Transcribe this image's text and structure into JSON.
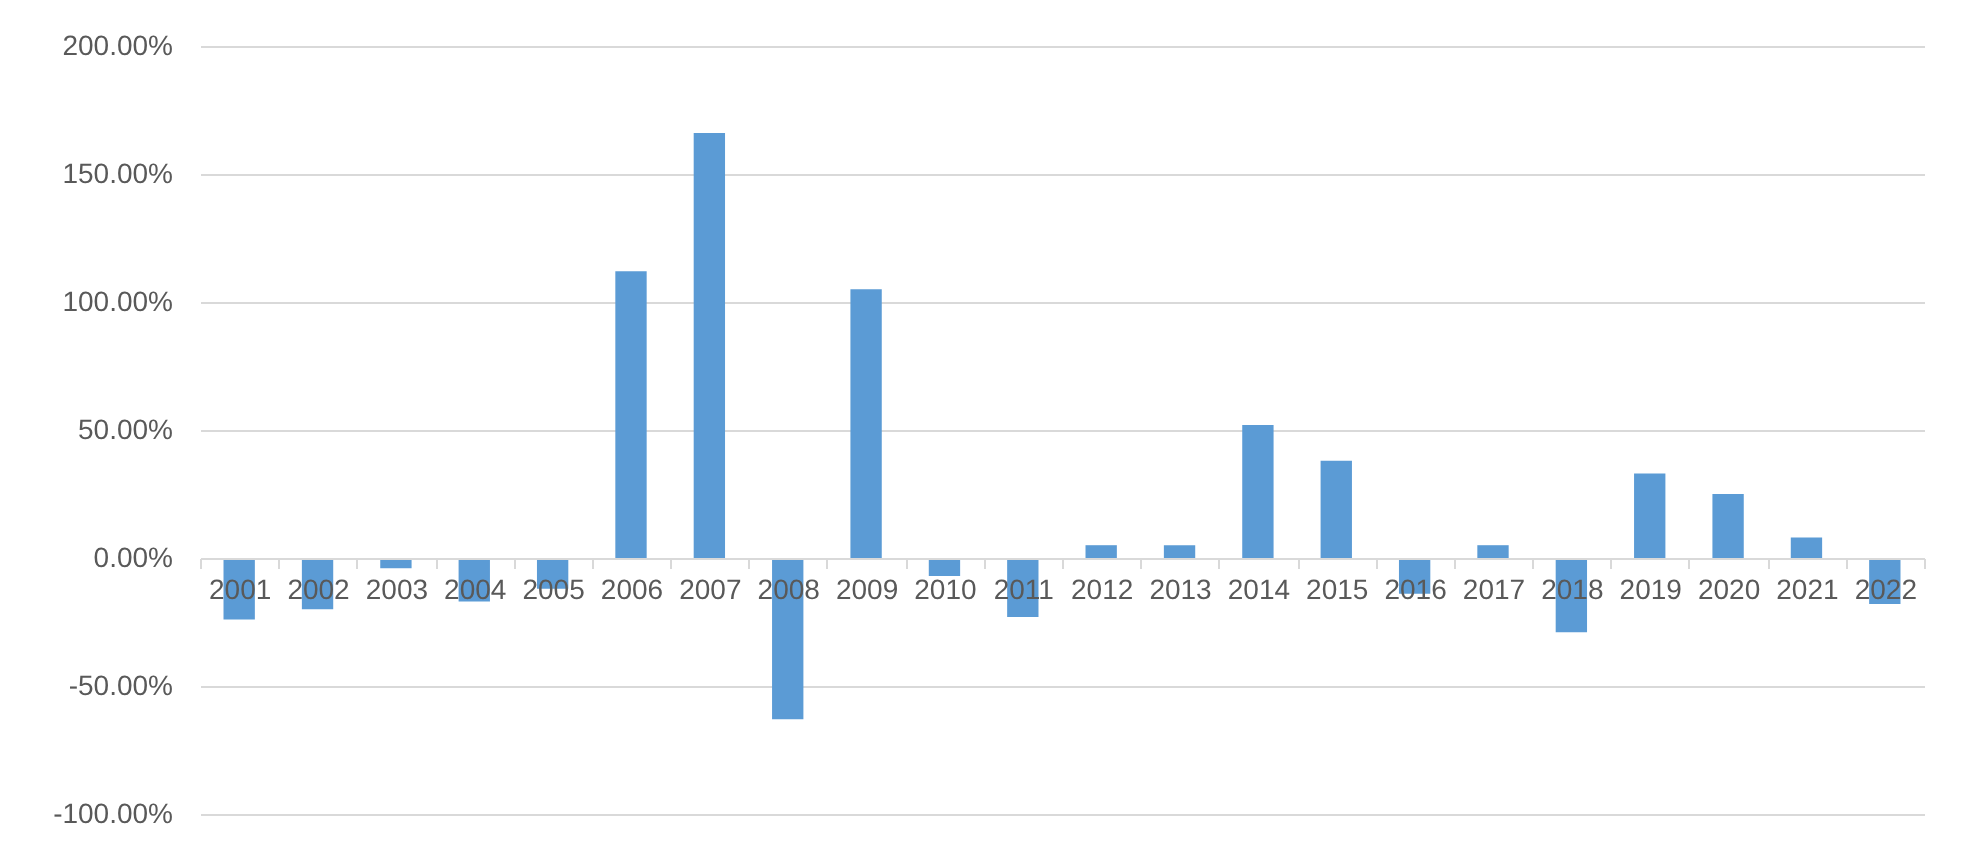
{
  "chart_data": {
    "type": "bar",
    "categories": [
      "2001",
      "2002",
      "2003",
      "2004",
      "2005",
      "2006",
      "2007",
      "2008",
      "2009",
      "2010",
      "2011",
      "2012",
      "2013",
      "2014",
      "2015",
      "2016",
      "2017",
      "2018",
      "2019",
      "2020",
      "2021",
      "2022"
    ],
    "values": [
      -24,
      -20,
      -4,
      -17,
      -12,
      112,
      166,
      -63,
      105,
      -7,
      -23,
      5,
      5,
      52,
      38,
      -14,
      5,
      -29,
      33,
      25,
      8,
      -18
    ],
    "color": "#5b9bd5",
    "ylim": [
      -100,
      200
    ],
    "yticks": [
      {
        "value": -100,
        "label": "-100.00%"
      },
      {
        "value": -50,
        "label": "-50.00%"
      },
      {
        "value": 0,
        "label": "0.00%"
      },
      {
        "value": 50,
        "label": "50.00%"
      },
      {
        "value": 100,
        "label": "100.00%"
      },
      {
        "value": 150,
        "label": "150.00%"
      },
      {
        "value": 200,
        "label": "200.00%"
      }
    ],
    "grid": "y"
  }
}
